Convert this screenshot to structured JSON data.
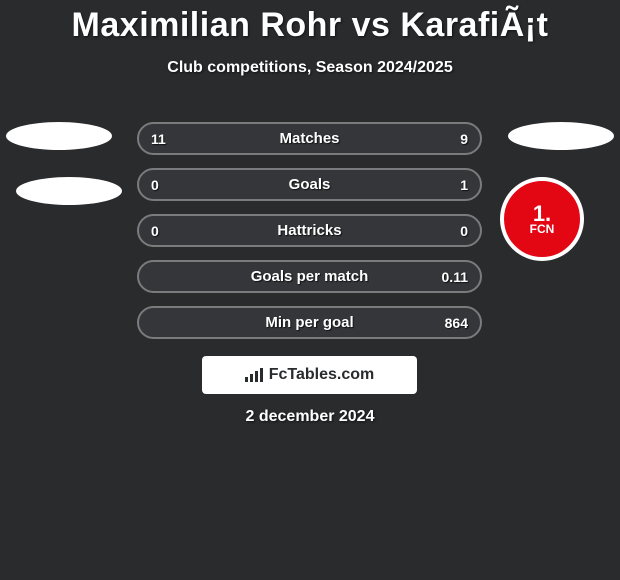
{
  "title": "Maximilian Rohr vs KarafiÃ¡t",
  "subtitle": "Club competitions, Season 2024/2025",
  "date": "2 december 2024",
  "brand": "FcTables.com",
  "badge": {
    "top": "1.",
    "bottom": "FCN",
    "bg": "#e30613"
  },
  "colors": {
    "background": "#2a2b2d",
    "row_border": "#7a7b7d",
    "row_bg": "#35363a",
    "text": "#ffffff"
  },
  "rows": [
    {
      "label": "Matches",
      "left": "11",
      "right": "9"
    },
    {
      "label": "Goals",
      "left": "0",
      "right": "1"
    },
    {
      "label": "Hattricks",
      "left": "0",
      "right": "0"
    },
    {
      "label": "Goals per match",
      "left": "",
      "right": "0.11"
    },
    {
      "label": "Min per goal",
      "left": "",
      "right": "864"
    }
  ]
}
